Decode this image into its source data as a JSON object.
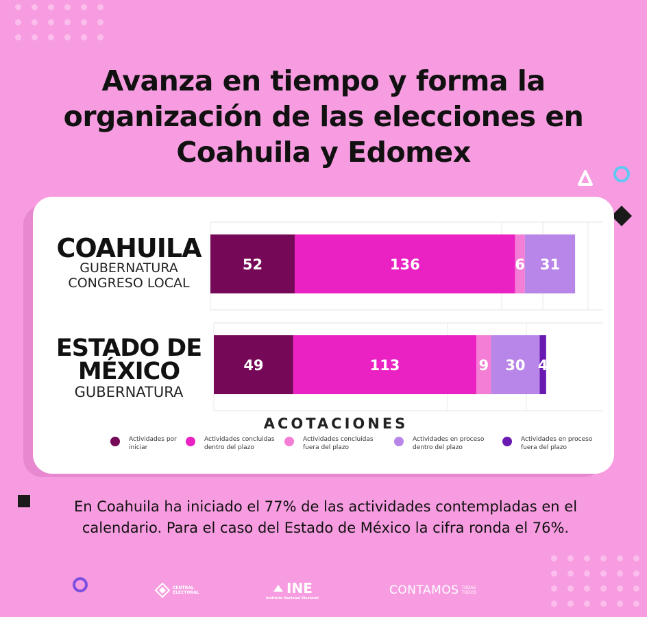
{
  "title": "Avanza en tiempo y forma la organización de las elecciones en Coahuila y Edomex",
  "caption": "En Coahuila ha iniciado el 77% de las actividades contempladas en el calendario. Para el caso del Estado de México la cifra ronda el 76%.",
  "colors": {
    "background": "#f79ce0",
    "por_iniciar": "#750957",
    "concluidas_dentro": "#ea22c3",
    "concluidas_fuera": "#f47ed5",
    "proceso_dentro": "#b886e8",
    "proceso_fuera": "#6a1ab0"
  },
  "chart_data": {
    "type": "bar",
    "orientation": "horizontal",
    "stacked": true,
    "legend_title": "ACOTACIONES",
    "legend_position": "bottom",
    "grid": true,
    "categories": [
      {
        "title": [
          "COAHUILA"
        ],
        "subtitle": [
          "GUBERNATURA",
          "CONGRESO LOCAL"
        ]
      },
      {
        "title": [
          "ESTADO DE",
          "MÉXICO"
        ],
        "subtitle": [
          "GUBERNATURA"
        ]
      }
    ],
    "series": [
      {
        "name": "Actividades por iniciar",
        "legend_lines": [
          "Actividades por",
          "iniciar"
        ],
        "values": [
          52,
          49
        ],
        "color": "#750957"
      },
      {
        "name": "Actividades concluidas dentro del plazo",
        "legend_lines": [
          "Actividades concluidas",
          "dentro del plazo"
        ],
        "values": [
          136,
          113
        ],
        "color": "#ea22c3"
      },
      {
        "name": "Actividades concluidas fuera del plazo",
        "legend_lines": [
          "Actividades concluidas",
          "fuera del plazo"
        ],
        "values": [
          6,
          9
        ],
        "color": "#f47ed5"
      },
      {
        "name": "Actividades en proceso dentro del plazo",
        "legend_lines": [
          "Actividades en proceso",
          "dentro del plazo"
        ],
        "values": [
          31,
          30
        ],
        "color": "#b886e8"
      },
      {
        "name": "Actividades en proceso fuera del plazo",
        "legend_lines": [
          "Actividades en proceso",
          "fuera del plazo"
        ],
        "values": [
          0,
          4
        ],
        "color": "#6a1ab0"
      }
    ],
    "data_labels": [
      [
        "52",
        "136",
        "6",
        "31",
        ""
      ],
      [
        "49",
        "113",
        "9",
        "30",
        "4"
      ]
    ]
  },
  "logos": {
    "central": [
      "CENTRAL",
      "ELECTORAL"
    ],
    "ine": "INE",
    "ine_sub": "Instituto Nacional Electoral",
    "contamos": "CONTAMOS",
    "contamos_sub": [
      "TODAS",
      "TODOS"
    ]
  },
  "icons": [
    "triangle-icon",
    "circle-outline-icon",
    "diamond-icon",
    "square-icon"
  ]
}
